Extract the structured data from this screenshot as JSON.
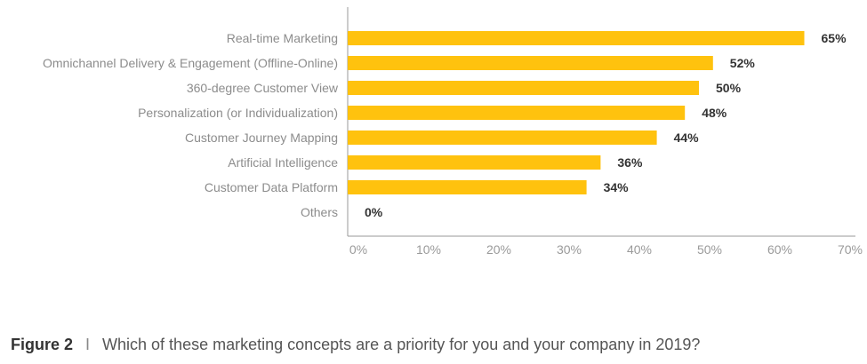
{
  "chart_data": {
    "type": "bar",
    "orientation": "horizontal",
    "categories": [
      "Real-time Marketing",
      "Omnichannel Delivery & Engagement (Offline-Online)",
      "360-degree Customer View",
      "Personalization (or Individualization)",
      "Customer Journey Mapping",
      "Artificial Intelligence",
      "Customer Data Platform",
      "Others"
    ],
    "values": [
      65,
      52,
      50,
      48,
      44,
      36,
      34,
      0
    ],
    "value_labels": [
      "65%",
      "52%",
      "50%",
      "48%",
      "44%",
      "36%",
      "34%",
      "0%"
    ],
    "xlim": [
      0,
      70
    ],
    "xticks": [
      0,
      10,
      20,
      30,
      40,
      50,
      60,
      70
    ],
    "xtick_labels": [
      "0%",
      "10%",
      "20%",
      "30%",
      "40%",
      "50%",
      "60%",
      "70%"
    ],
    "grid": false,
    "bar_color": "#FFC20E"
  },
  "caption": {
    "figure": "Figure 2",
    "separator": "I",
    "text": "Which of these marketing concepts are a priority for you and your company in 2019?"
  }
}
